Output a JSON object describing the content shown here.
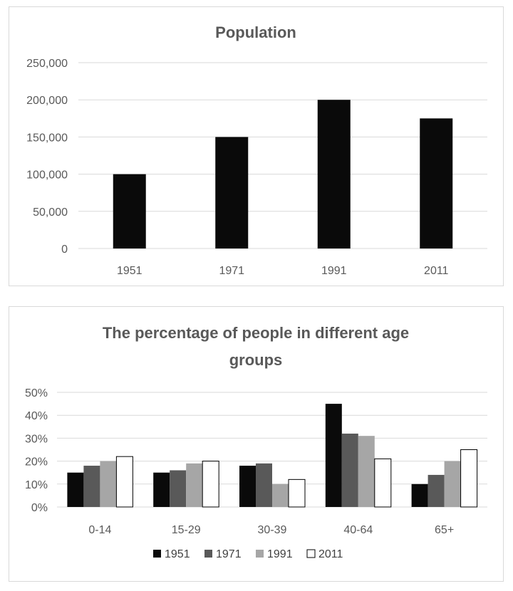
{
  "chart_data": [
    {
      "type": "bar",
      "title": "Population",
      "categories": [
        "1951",
        "1971",
        "1991",
        "2011"
      ],
      "values": [
        100000,
        150000,
        200000,
        175000
      ],
      "yticks": [
        "0",
        "50,000",
        "100,000",
        "150,000",
        "200,000",
        "250,000"
      ],
      "ylim": [
        0,
        250000
      ],
      "grid": true,
      "colors": {
        "bar": "#0a0a0a"
      }
    },
    {
      "type": "bar",
      "title_lines": [
        "The percentage of people in different age",
        "groups"
      ],
      "categories": [
        "0-14",
        "15-29",
        "30-39",
        "40-64",
        "65+"
      ],
      "series": [
        {
          "name": "1951",
          "values": [
            15,
            15,
            18,
            45,
            10
          ],
          "color": "#0a0a0a"
        },
        {
          "name": "1971",
          "values": [
            18,
            16,
            19,
            32,
            14
          ],
          "color": "#595959"
        },
        {
          "name": "1991",
          "values": [
            20,
            19,
            10,
            31,
            20
          ],
          "color": "#a6a6a6"
        },
        {
          "name": "2011",
          "values": [
            22,
            20,
            12,
            21,
            25
          ],
          "color": "#ffffff"
        }
      ],
      "yticks": [
        "0%",
        "10%",
        "20%",
        "30%",
        "40%",
        "50%"
      ],
      "ylim": [
        0,
        50
      ],
      "grid": true,
      "legend_position": "bottom"
    }
  ]
}
